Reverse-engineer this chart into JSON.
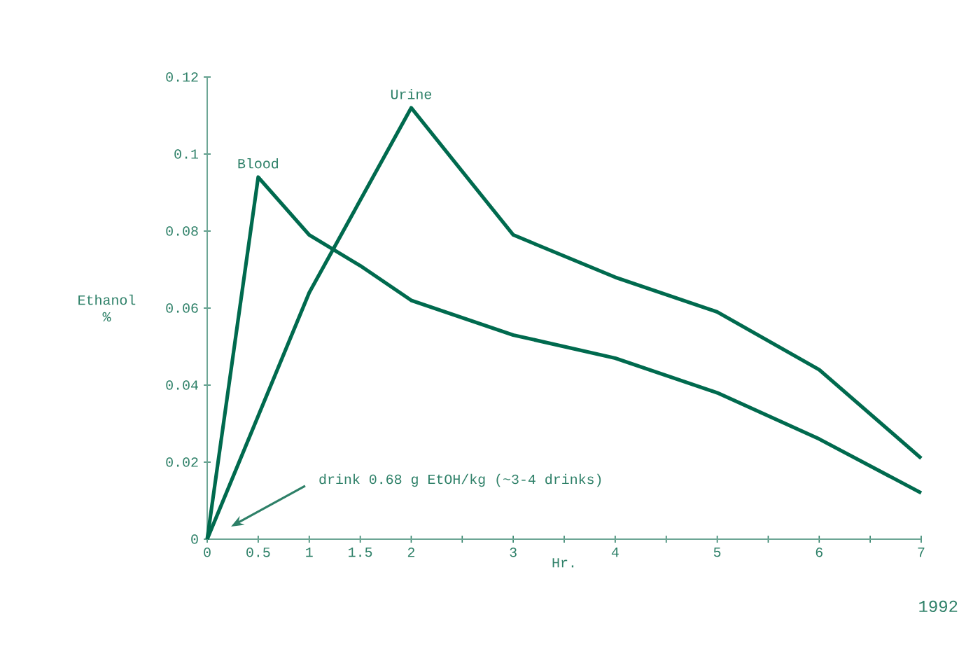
{
  "chart_data": {
    "type": "line",
    "xlabel": "Hr.",
    "ylabel": "Ethanol\n%",
    "xlim": [
      0,
      7
    ],
    "ylim": [
      0,
      0.12
    ],
    "xticks": [
      0,
      0.5,
      1,
      1.5,
      2,
      {
        "value": 2.5,
        "label": null
      },
      3,
      {
        "value": 3.5,
        "label": null
      },
      4,
      {
        "value": 4.5,
        "label": null
      },
      5,
      {
        "value": 5.5,
        "label": null
      },
      6,
      {
        "value": 6.5,
        "label": null
      },
      7
    ],
    "yticks": [
      0,
      0.02,
      0.04,
      0.06,
      0.08,
      0.1,
      0.12
    ],
    "grid": false,
    "line_style": "solid",
    "series": [
      {
        "name": "Blood",
        "color": "#006a4e",
        "x": [
          0,
          0.5,
          1,
          1.5,
          2,
          3,
          4,
          5,
          6,
          7
        ],
        "values": [
          0,
          0.094,
          0.079,
          0.071,
          0.062,
          0.053,
          0.047,
          0.038,
          0.026,
          0.012
        ]
      },
      {
        "name": "Urine",
        "color": "#006a4e",
        "x": [
          0,
          1,
          2,
          3,
          4,
          5,
          6,
          7
        ],
        "values": [
          0,
          0.064,
          0.112,
          0.079,
          0.068,
          0.059,
          0.044,
          0.021
        ]
      }
    ],
    "annotations": [
      "drink 0.68 g EtOH/kg  (~3-4 drinks)",
      "1992"
    ]
  }
}
